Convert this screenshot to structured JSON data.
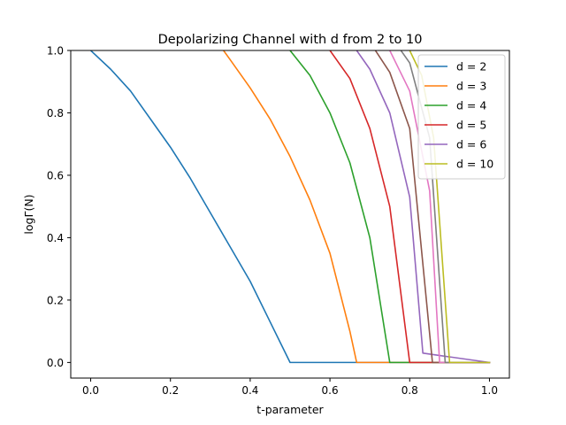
{
  "chart_data": {
    "type": "line",
    "title": "Depolarizing Channel with d from 2 to 10",
    "xlabel": "t-parameter",
    "ylabel": "logΓ(N)",
    "xlim": [
      -0.05,
      1.05
    ],
    "ylim": [
      -0.05,
      1.0
    ],
    "xticks": [
      0.0,
      0.2,
      0.4,
      0.6,
      0.8,
      1.0
    ],
    "xtick_labels": [
      "0.0",
      "0.2",
      "0.4",
      "0.6",
      "0.8",
      "1.0"
    ],
    "yticks": [
      0.0,
      0.2,
      0.4,
      0.6,
      0.8,
      1.0
    ],
    "ytick_labels": [
      "0.0",
      "0.2",
      "0.4",
      "0.6",
      "0.8",
      "1.0"
    ],
    "grid": false,
    "legend_position": "top-right",
    "series": [
      {
        "name": "d = 2",
        "color": "#1f77b4",
        "in_legend": true,
        "x": [
          0.0,
          0.05,
          0.1,
          0.15,
          0.2,
          0.25,
          0.3,
          0.35,
          0.4,
          0.45,
          0.5,
          1.0
        ],
        "y": [
          1.0,
          0.94,
          0.87,
          0.78,
          0.69,
          0.59,
          0.48,
          0.37,
          0.26,
          0.13,
          0.0,
          0.0
        ]
      },
      {
        "name": "d = 3",
        "color": "#ff7f0e",
        "in_legend": true,
        "x": [
          0.333,
          0.35,
          0.4,
          0.45,
          0.5,
          0.55,
          0.6,
          0.65,
          0.667,
          1.0
        ],
        "y": [
          1.0,
          0.97,
          0.88,
          0.78,
          0.66,
          0.52,
          0.35,
          0.1,
          0.0,
          0.0
        ]
      },
      {
        "name": "d = 4",
        "color": "#2ca02c",
        "in_legend": true,
        "x": [
          0.5,
          0.55,
          0.6,
          0.65,
          0.7,
          0.75,
          1.0
        ],
        "y": [
          1.0,
          0.92,
          0.8,
          0.64,
          0.4,
          0.0,
          0.0
        ]
      },
      {
        "name": "d = 5",
        "color": "#d62728",
        "in_legend": true,
        "x": [
          0.6,
          0.65,
          0.7,
          0.75,
          0.8,
          1.0
        ],
        "y": [
          1.0,
          0.91,
          0.75,
          0.5,
          0.0,
          0.0
        ]
      },
      {
        "name": "d = 6",
        "color": "#9467bd",
        "in_legend": true,
        "x": [
          0.667,
          0.7,
          0.75,
          0.8,
          0.833,
          1.0
        ],
        "y": [
          1.0,
          0.94,
          0.8,
          0.53,
          0.03,
          0.0
        ]
      },
      {
        "name": "",
        "color": "#8c564b",
        "in_legend": false,
        "x": [
          0.714,
          0.75,
          0.8,
          0.857,
          1.0
        ],
        "y": [
          1.0,
          0.93,
          0.75,
          0.0,
          0.0
        ]
      },
      {
        "name": "",
        "color": "#e377c2",
        "in_legend": false,
        "x": [
          0.75,
          0.8,
          0.85,
          0.875,
          1.0
        ],
        "y": [
          1.0,
          0.87,
          0.55,
          0.0,
          0.0
        ]
      },
      {
        "name": "",
        "color": "#7f7f7f",
        "in_legend": false,
        "x": [
          0.778,
          0.8,
          0.85,
          0.889,
          1.0
        ],
        "y": [
          1.0,
          0.96,
          0.72,
          0.0,
          0.0
        ]
      },
      {
        "name": "d = 10",
        "color": "#bcbd22",
        "in_legend": true,
        "x": [
          0.8,
          0.83,
          0.86,
          0.9,
          1.0
        ],
        "y": [
          1.0,
          0.92,
          0.72,
          0.0,
          0.0
        ]
      }
    ]
  }
}
